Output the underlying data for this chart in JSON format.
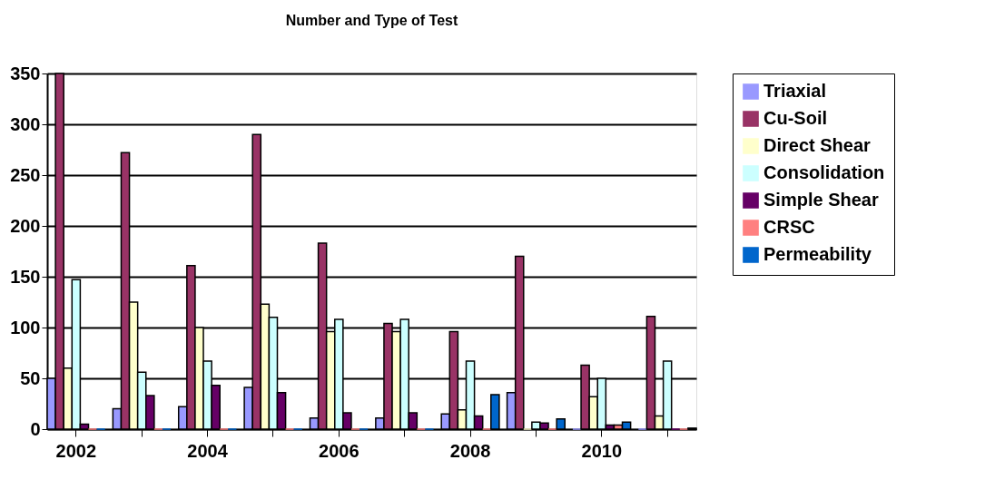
{
  "chart_data": {
    "type": "bar",
    "title": "Number and Type of Test",
    "categories": [
      "2002",
      null,
      "2004",
      null,
      "2006",
      null,
      "2008",
      null,
      "2010",
      null
    ],
    "series": [
      {
        "name": "Triaxial",
        "color": "#9999ff",
        "values": [
          50,
          20,
          22,
          41,
          11,
          11,
          15,
          36,
          0,
          0
        ]
      },
      {
        "name": "Cu-Soil",
        "color": "#993366",
        "values": [
          350,
          272,
          161,
          290,
          183,
          104,
          96,
          170,
          63,
          111
        ]
      },
      {
        "name": "Direct Shear",
        "color": "#ffffcc",
        "values": [
          60,
          125,
          100,
          123,
          96,
          96,
          19,
          0,
          32,
          13
        ]
      },
      {
        "name": "Consolidation",
        "color": "#ccffff",
        "values": [
          147,
          56,
          67,
          110,
          108,
          108,
          67,
          7,
          50,
          67
        ]
      },
      {
        "name": "Simple Shear",
        "color": "#660066",
        "values": [
          5,
          33,
          43,
          36,
          16,
          16,
          13,
          6,
          4,
          0
        ]
      },
      {
        "name": "CRSC",
        "color": "#ff8080",
        "values": [
          0,
          0,
          0,
          0,
          0,
          0,
          0,
          0,
          4,
          0
        ]
      },
      {
        "name": "Permeability",
        "color": "#0066cc",
        "values": [
          0,
          0,
          0,
          0,
          0,
          0,
          34,
          10,
          7,
          1
        ]
      }
    ],
    "ylim": [
      0,
      350
    ],
    "yticks": [
      0,
      50,
      100,
      150,
      200,
      250,
      300,
      350
    ],
    "grid": "y",
    "legend": "right"
  }
}
